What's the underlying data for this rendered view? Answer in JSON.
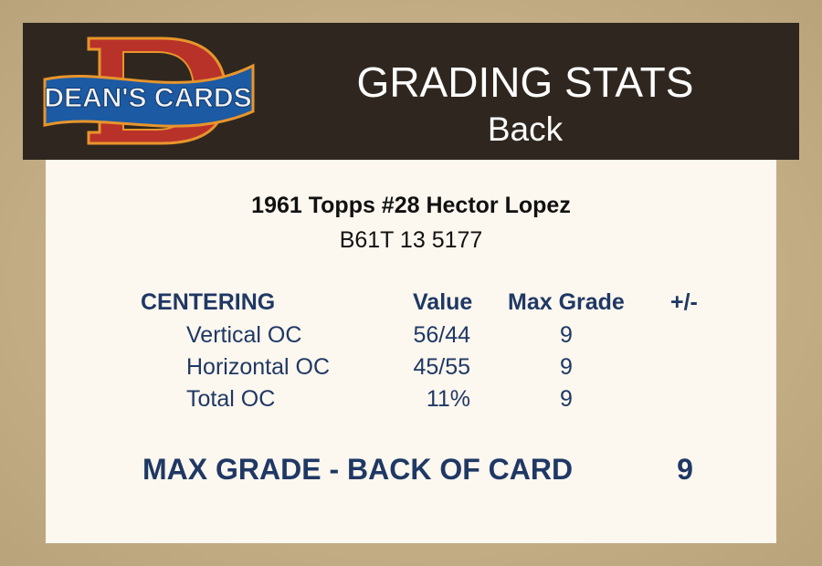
{
  "header": {
    "logo_text": "DEAN'S CARDS",
    "title": "GRADING STATS",
    "subtitle": "Back"
  },
  "card": {
    "name": "1961 Topps #28 Hector Lopez",
    "cert": "B61T 13 5177"
  },
  "table": {
    "section": "CENTERING",
    "columns": [
      "Value",
      "Max Grade",
      "+/-"
    ],
    "rows": [
      {
        "label": "Vertical OC",
        "value": "56/44",
        "max_grade": "9"
      },
      {
        "label": "Horizontal OC",
        "value": "45/55",
        "max_grade": "9"
      },
      {
        "label": "Total OC",
        "value": "11%",
        "max_grade": "9"
      }
    ]
  },
  "summary": {
    "label": "MAX GRADE - BACK OF CARD",
    "value": "9"
  },
  "colors": {
    "header_bg": "#2f271f",
    "panel_bg": "#fcf7ef",
    "text_navy": "#1f3864"
  }
}
